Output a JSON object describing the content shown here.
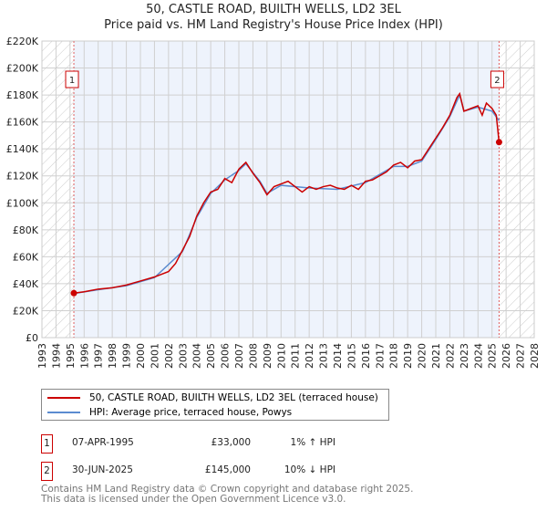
{
  "chart_data": {
    "type": "line",
    "title": "50, CASTLE ROAD, BUILTH WELLS, LD2 3EL",
    "subtitle": "Price paid vs. HM Land Registry's House Price Index (HPI)",
    "xlim": [
      1993,
      2028
    ],
    "ylim": [
      0,
      220000
    ],
    "x_ticks": [
      "1993",
      "1994",
      "1995",
      "1996",
      "1997",
      "1998",
      "1999",
      "2000",
      "2001",
      "2002",
      "2003",
      "2004",
      "2005",
      "2006",
      "2007",
      "2008",
      "2009",
      "2010",
      "2011",
      "2012",
      "2013",
      "2014",
      "2015",
      "2016",
      "2017",
      "2018",
      "2019",
      "2020",
      "2021",
      "2022",
      "2023",
      "2024",
      "2025",
      "2026",
      "2027",
      "2028"
    ],
    "y_ticks": [
      {
        "v": 0,
        "label": "£0"
      },
      {
        "v": 20000,
        "label": "£20K"
      },
      {
        "v": 40000,
        "label": "£40K"
      },
      {
        "v": 60000,
        "label": "£60K"
      },
      {
        "v": 80000,
        "label": "£80K"
      },
      {
        "v": 100000,
        "label": "£100K"
      },
      {
        "v": 120000,
        "label": "£120K"
      },
      {
        "v": 140000,
        "label": "£140K"
      },
      {
        "v": 160000,
        "label": "£160K"
      },
      {
        "v": 180000,
        "label": "£180K"
      },
      {
        "v": 200000,
        "label": "£200K"
      },
      {
        "v": 220000,
        "label": "£220K"
      }
    ],
    "series": [
      {
        "name": "50, CASTLE ROAD, BUILTH WELLS, LD2 3EL (terraced house)",
        "color": "#cc0000",
        "x": [
          1995.27,
          1996,
          1997,
          1998,
          1999,
          2000,
          2001,
          2002,
          2002.5,
          2003,
          2003.5,
          2004,
          2004.5,
          2005,
          2005.5,
          2006,
          2006.5,
          2007,
          2007.5,
          2008,
          2008.5,
          2009,
          2009.5,
          2010,
          2010.5,
          2011,
          2011.5,
          2012,
          2012.5,
          2013,
          2013.5,
          2014,
          2014.5,
          2015,
          2015.5,
          2016,
          2016.5,
          2017,
          2017.5,
          2018,
          2018.5,
          2019,
          2019.5,
          2020,
          2020.5,
          2021,
          2021.5,
          2022,
          2022.5,
          2022.7,
          2023,
          2023.5,
          2024,
          2024.3,
          2024.6,
          2025,
          2025.3,
          2025.5
        ],
        "y": [
          33000,
          34000,
          36000,
          37000,
          39000,
          42000,
          45000,
          49000,
          55000,
          65000,
          75000,
          90000,
          100000,
          108000,
          110000,
          118000,
          115000,
          125000,
          130000,
          122000,
          115000,
          106000,
          112000,
          114000,
          116000,
          112000,
          108000,
          112000,
          110000,
          112000,
          113000,
          111000,
          110000,
          113000,
          110000,
          116000,
          117000,
          120000,
          123000,
          128000,
          130000,
          126000,
          131000,
          132000,
          140000,
          148000,
          156000,
          165000,
          178000,
          181000,
          168000,
          170000,
          172000,
          165000,
          174000,
          170000,
          165000,
          145000
        ]
      },
      {
        "name": "HPI: Average price, terraced house, Powys",
        "color": "#5b8bd0",
        "x": [
          1995.27,
          1997,
          1999,
          2001,
          2003,
          2004,
          2005,
          2006,
          2007,
          2007.5,
          2008.5,
          2009,
          2010,
          2012,
          2014,
          2016,
          2018,
          2019,
          2020,
          2021,
          2022,
          2022.7,
          2023,
          2024,
          2025,
          2025.5
        ],
        "y": [
          32700,
          35500,
          38500,
          44500,
          64000,
          89000,
          107000,
          117000,
          124000,
          129000,
          116000,
          107000,
          113000,
          111000,
          110000,
          115000,
          127000,
          127000,
          131000,
          147000,
          164000,
          180000,
          168000,
          171000,
          168000,
          161000
        ]
      }
    ],
    "sales": [
      {
        "label": "1",
        "date": "07-APR-1995",
        "x": 1995.27,
        "price": "£33,000",
        "value": 33000,
        "hpi": "1% ↑ HPI"
      },
      {
        "label": "2",
        "date": "30-JUN-2025",
        "x": 2025.5,
        "price": "£145,000",
        "value": 145000,
        "hpi": "10% ↓ HPI"
      }
    ],
    "legend_placement": "below"
  },
  "footer": {
    "line1": "Contains HM Land Registry data © Crown copyright and database right 2025.",
    "line2": "This data is licensed under the Open Government Licence v3.0."
  }
}
